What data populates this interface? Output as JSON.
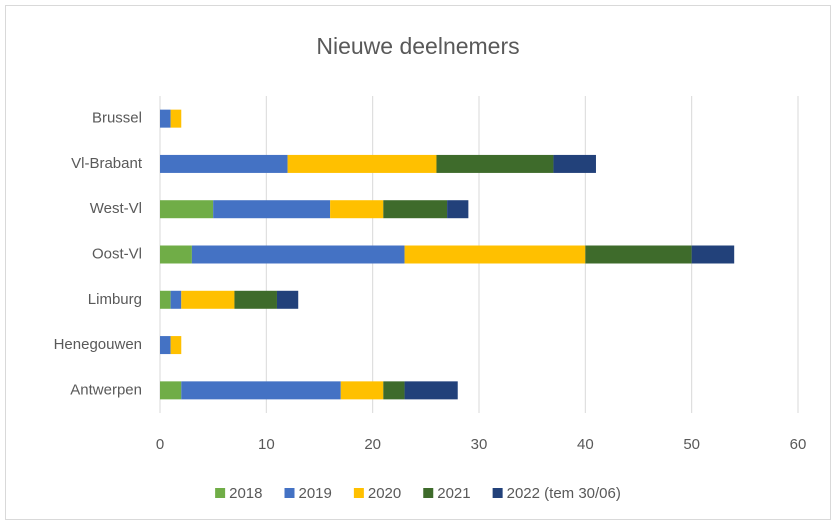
{
  "chart_data": {
    "type": "stacked-bar-horizontal",
    "title": "Nieuwe deelnemers",
    "categories": [
      "Brussel",
      "Vl-Brabant",
      "West-Vl",
      "Oost-Vl",
      "Limburg",
      "Henegouwen",
      "Antwerpen"
    ],
    "series": [
      {
        "name": "2018",
        "color": "#70ad47",
        "values": [
          0,
          0,
          5,
          3,
          1,
          0,
          2
        ]
      },
      {
        "name": "2019",
        "color": "#4472c4",
        "values": [
          1,
          12,
          11,
          20,
          1,
          1,
          15
        ]
      },
      {
        "name": "2020",
        "color": "#ffc000",
        "values": [
          1,
          14,
          5,
          17,
          5,
          1,
          4
        ]
      },
      {
        "name": "2021",
        "color": "#3e6b2b",
        "values": [
          0,
          11,
          6,
          10,
          4,
          0,
          2
        ]
      },
      {
        "name": "2022 (tem 30/06)",
        "color": "#22417a",
        "values": [
          0,
          4,
          2,
          4,
          2,
          0,
          5
        ]
      }
    ],
    "xlim": [
      0,
      60
    ],
    "xticks": [
      0,
      10,
      20,
      30,
      40,
      50,
      60
    ],
    "grid": true,
    "legend": "bottom"
  }
}
